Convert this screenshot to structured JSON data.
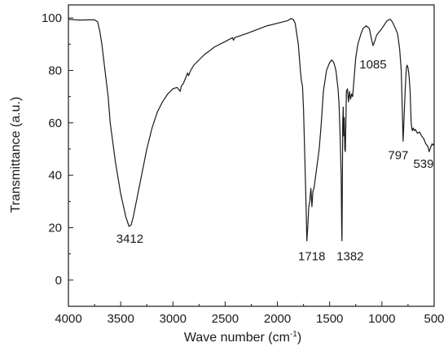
{
  "chart_data": {
    "type": "line",
    "title": "",
    "xlabel": "Wave number (cm",
    "xlabel_sup": "-1",
    "xlabel_tail": ")",
    "ylabel": "Transmittance (a.u.)",
    "xlim": [
      4000,
      500
    ],
    "ylim": [
      -10,
      105
    ],
    "x_reversed": true,
    "grid": false,
    "x_ticks": [
      {
        "value": 4000,
        "label": "4000"
      },
      {
        "value": 3500,
        "label": "3500"
      },
      {
        "value": 3000,
        "label": "3000"
      },
      {
        "value": 2500,
        "label": "2500"
      },
      {
        "value": 2000,
        "label": "2000"
      },
      {
        "value": 1500,
        "label": "1500"
      },
      {
        "value": 1000,
        "label": "1000"
      },
      {
        "value": 500,
        "label": "500"
      }
    ],
    "y_ticks": [
      {
        "value": 0,
        "label": "0"
      },
      {
        "value": 20,
        "label": "20"
      },
      {
        "value": 40,
        "label": "40"
      },
      {
        "value": 60,
        "label": "60"
      },
      {
        "value": 80,
        "label": "80"
      },
      {
        "value": 100,
        "label": "100"
      }
    ],
    "series": [
      {
        "color": "#1a1a1a",
        "points": [
          [
            4000,
            99.5
          ],
          [
            3900,
            99.2
          ],
          [
            3800,
            99.3
          ],
          [
            3750,
            99.3
          ],
          [
            3720,
            98.5
          ],
          [
            3700,
            95
          ],
          [
            3680,
            90
          ],
          [
            3650,
            80
          ],
          [
            3620,
            70
          ],
          [
            3600,
            60
          ],
          [
            3550,
            45
          ],
          [
            3500,
            33
          ],
          [
            3450,
            24
          ],
          [
            3420,
            20.5
          ],
          [
            3400,
            21
          ],
          [
            3380,
            24
          ],
          [
            3350,
            30
          ],
          [
            3300,
            40
          ],
          [
            3250,
            50
          ],
          [
            3200,
            58
          ],
          [
            3150,
            64
          ],
          [
            3100,
            68
          ],
          [
            3050,
            71
          ],
          [
            3000,
            73
          ],
          [
            2960,
            73.5
          ],
          [
            2930,
            72
          ],
          [
            2920,
            74
          ],
          [
            2900,
            75
          ],
          [
            2880,
            77
          ],
          [
            2860,
            79
          ],
          [
            2850,
            78
          ],
          [
            2830,
            80
          ],
          [
            2800,
            82
          ],
          [
            2700,
            86
          ],
          [
            2600,
            89
          ],
          [
            2500,
            91
          ],
          [
            2430,
            92.5
          ],
          [
            2420,
            91.5
          ],
          [
            2410,
            92.5
          ],
          [
            2300,
            94
          ],
          [
            2200,
            95.5
          ],
          [
            2100,
            97
          ],
          [
            2000,
            98
          ],
          [
            1950,
            98.5
          ],
          [
            1900,
            99
          ],
          [
            1870,
            99.8
          ],
          [
            1850,
            99.5
          ],
          [
            1830,
            98
          ],
          [
            1800,
            90
          ],
          [
            1790,
            85
          ],
          [
            1780,
            80
          ],
          [
            1770,
            76
          ],
          [
            1760,
            74
          ],
          [
            1750,
            65
          ],
          [
            1740,
            50
          ],
          [
            1730,
            35
          ],
          [
            1718,
            15
          ],
          [
            1710,
            20
          ],
          [
            1700,
            28
          ],
          [
            1690,
            30
          ],
          [
            1680,
            35
          ],
          [
            1670,
            28
          ],
          [
            1660,
            34
          ],
          [
            1650,
            35
          ],
          [
            1640,
            38
          ],
          [
            1600,
            50
          ],
          [
            1580,
            60
          ],
          [
            1560,
            72
          ],
          [
            1530,
            80
          ],
          [
            1500,
            83
          ],
          [
            1480,
            84
          ],
          [
            1460,
            83
          ],
          [
            1440,
            80
          ],
          [
            1420,
            73
          ],
          [
            1410,
            67
          ],
          [
            1400,
            55
          ],
          [
            1390,
            40
          ],
          [
            1385,
            20
          ],
          [
            1382,
            15
          ],
          [
            1378,
            40
          ],
          [
            1375,
            60
          ],
          [
            1370,
            66
          ],
          [
            1365,
            55
          ],
          [
            1360,
            62
          ],
          [
            1355,
            50
          ],
          [
            1350,
            49
          ],
          [
            1345,
            60
          ],
          [
            1340,
            72
          ],
          [
            1330,
            73
          ],
          [
            1320,
            68
          ],
          [
            1310,
            72
          ],
          [
            1300,
            69
          ],
          [
            1290,
            71
          ],
          [
            1280,
            70
          ],
          [
            1260,
            80
          ],
          [
            1250,
            85
          ],
          [
            1230,
            90
          ],
          [
            1200,
            94
          ],
          [
            1180,
            96
          ],
          [
            1150,
            97
          ],
          [
            1120,
            96
          ],
          [
            1100,
            92
          ],
          [
            1085,
            89.5
          ],
          [
            1070,
            91
          ],
          [
            1050,
            93.5
          ],
          [
            1000,
            96
          ],
          [
            950,
            99
          ],
          [
            920,
            99.5
          ],
          [
            900,
            98.5
          ],
          [
            870,
            96
          ],
          [
            850,
            94
          ],
          [
            830,
            88
          ],
          [
            815,
            80
          ],
          [
            805,
            65
          ],
          [
            797,
            53
          ],
          [
            790,
            60
          ],
          [
            780,
            70
          ],
          [
            770,
            78
          ],
          [
            765,
            81
          ],
          [
            760,
            82
          ],
          [
            750,
            81
          ],
          [
            740,
            78
          ],
          [
            730,
            72
          ],
          [
            720,
            60
          ],
          [
            710,
            57
          ],
          [
            700,
            58
          ],
          [
            690,
            57
          ],
          [
            680,
            57.5
          ],
          [
            660,
            56
          ],
          [
            640,
            56.5
          ],
          [
            620,
            55
          ],
          [
            600,
            54
          ],
          [
            580,
            52
          ],
          [
            560,
            51
          ],
          [
            548,
            49
          ],
          [
            539,
            50
          ],
          [
            530,
            51
          ],
          [
            520,
            52
          ],
          [
            510,
            51.5
          ],
          [
            500,
            52
          ]
        ]
      }
    ],
    "annotations": [
      {
        "label": "3412",
        "x": 3412,
        "y": 20.5
      },
      {
        "label": "1718",
        "x": 1718,
        "y": 15
      },
      {
        "label": "1382",
        "x": 1382,
        "y": 15
      },
      {
        "label": "1085",
        "x": 1085,
        "y": 89.5
      },
      {
        "label": "797",
        "x": 797,
        "y": 53
      },
      {
        "label": "539",
        "x": 539,
        "y": 49
      }
    ]
  }
}
